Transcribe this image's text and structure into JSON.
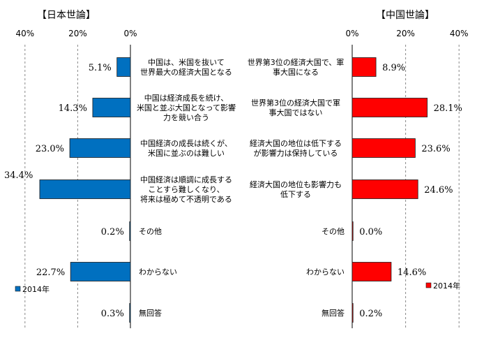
{
  "chart_data": [
    {
      "type": "bar",
      "orientation": "horizontal",
      "direction": "leftward",
      "title": "【日本世論】",
      "ticks": [
        "40%",
        "20%",
        "0%"
      ],
      "xlim": [
        0,
        40
      ],
      "grid": true,
      "legend_position": "bottom-left",
      "categories": [
        [
          "中国は、米国を抜いて",
          "世界最大の経済大国となる"
        ],
        [
          "中国は経済成長を続け、",
          "米国と並ぶ大国となって影響",
          "力を競い合う"
        ],
        [
          "中国経済の成長は続くが、",
          "米国に並ぶのは難しい"
        ],
        [
          "中国経済は順調に成長する",
          "ことすら難しくなり、",
          "将来は極めて不透明である"
        ],
        [
          "その他"
        ],
        [
          "わからない"
        ],
        [
          "無回答"
        ]
      ],
      "series": [
        {
          "name": "2014年",
          "color": "#0070C0",
          "values": [
            5.1,
            14.3,
            23.0,
            34.4,
            0.2,
            22.7,
            0.3
          ],
          "labels": [
            "5.1%",
            "14.3%",
            "23.0%",
            "34.4%",
            "0.2%",
            "22.7%",
            "0.3%"
          ]
        }
      ]
    },
    {
      "type": "bar",
      "orientation": "horizontal",
      "direction": "rightward",
      "title": "【中国世論】",
      "ticks": [
        "0%",
        "20%",
        "40%"
      ],
      "xlim": [
        0,
        40
      ],
      "grid": true,
      "legend_position": "bottom-right",
      "categories": [
        [
          "世界第3位の経済大国で、軍",
          "事大国になる"
        ],
        [
          "世界第3位の経済大国で軍",
          "事大国ではない"
        ],
        [
          "経済大国の地位は低下する",
          "が影響力は保持している"
        ],
        [
          "経済大国の地位も影響力も",
          "低下する"
        ],
        [
          "その他"
        ],
        [
          "わからない"
        ],
        [
          "無回答"
        ]
      ],
      "series": [
        {
          "name": "2014年",
          "color": "#FF0000",
          "values": [
            8.9,
            28.1,
            23.6,
            24.6,
            0.0,
            14.6,
            0.2
          ],
          "labels": [
            "8.9%",
            "28.1%",
            "23.6%",
            "24.6%",
            "0.0%",
            "14.6%",
            "0.2%"
          ]
        }
      ]
    }
  ]
}
